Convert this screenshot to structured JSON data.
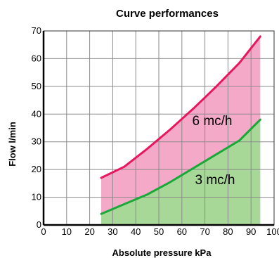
{
  "chart_data": {
    "type": "area",
    "title": "Curve performances",
    "xlabel": "Absolute pressure kPa",
    "ylabel": "Flow  l/min",
    "xlim": [
      0,
      100
    ],
    "ylim": [
      0,
      70
    ],
    "xticks": [
      0,
      10,
      20,
      30,
      40,
      50,
      60,
      70,
      80,
      90,
      100
    ],
    "yticks": [
      0,
      10,
      20,
      30,
      40,
      50,
      60,
      70
    ],
    "grid": true,
    "legend": "none",
    "series": [
      {
        "name": "6 mc/h",
        "color": "#e8175d",
        "fill": "#f4a9c8",
        "x": [
          25,
          35,
          45,
          55,
          65,
          75,
          85,
          94
        ],
        "y": [
          17,
          21,
          27.5,
          34.5,
          42,
          50,
          58.5,
          68
        ]
      },
      {
        "name": "3 mc/h",
        "color": "#1aa838",
        "fill": "#a8d898",
        "x": [
          25,
          35,
          45,
          55,
          65,
          75,
          85,
          94
        ],
        "y": [
          4,
          7.5,
          11,
          15.5,
          20.5,
          25.5,
          30.5,
          38
        ]
      }
    ]
  }
}
